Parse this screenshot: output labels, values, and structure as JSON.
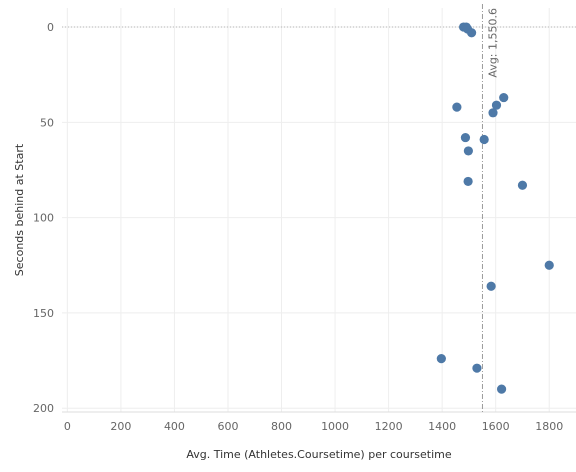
{
  "chart_data": {
    "type": "scatter",
    "xlabel": "Avg. Time (Athletes.Coursetime) per coursetime",
    "ylabel": "Seconds behind at Start",
    "xlim": [
      -20,
      1900
    ],
    "ylim": [
      -10,
      202
    ],
    "y_inverted": true,
    "x_ticks": [
      0,
      200,
      400,
      600,
      800,
      1000,
      1200,
      1400,
      1600,
      1800
    ],
    "y_ticks": [
      0,
      50,
      100,
      150,
      200
    ],
    "grid": true,
    "marker_color": "#4e79a7",
    "reference_line": {
      "axis": "x",
      "value": 1550.6,
      "label": "Avg: 1,550.6"
    },
    "baseline": {
      "axis": "y",
      "value": 0
    },
    "points": [
      {
        "x": 1480,
        "y": 0
      },
      {
        "x": 1490,
        "y": 0
      },
      {
        "x": 1495,
        "y": 1
      },
      {
        "x": 1510,
        "y": 3
      },
      {
        "x": 1630,
        "y": 37
      },
      {
        "x": 1603,
        "y": 41
      },
      {
        "x": 1455,
        "y": 42
      },
      {
        "x": 1590,
        "y": 45
      },
      {
        "x": 1487,
        "y": 58
      },
      {
        "x": 1557,
        "y": 59
      },
      {
        "x": 1498,
        "y": 65
      },
      {
        "x": 1497,
        "y": 81
      },
      {
        "x": 1700,
        "y": 83
      },
      {
        "x": 1800,
        "y": 125
      },
      {
        "x": 1583,
        "y": 136
      },
      {
        "x": 1397,
        "y": 174
      },
      {
        "x": 1530,
        "y": 179
      },
      {
        "x": 1622,
        "y": 190
      }
    ]
  }
}
